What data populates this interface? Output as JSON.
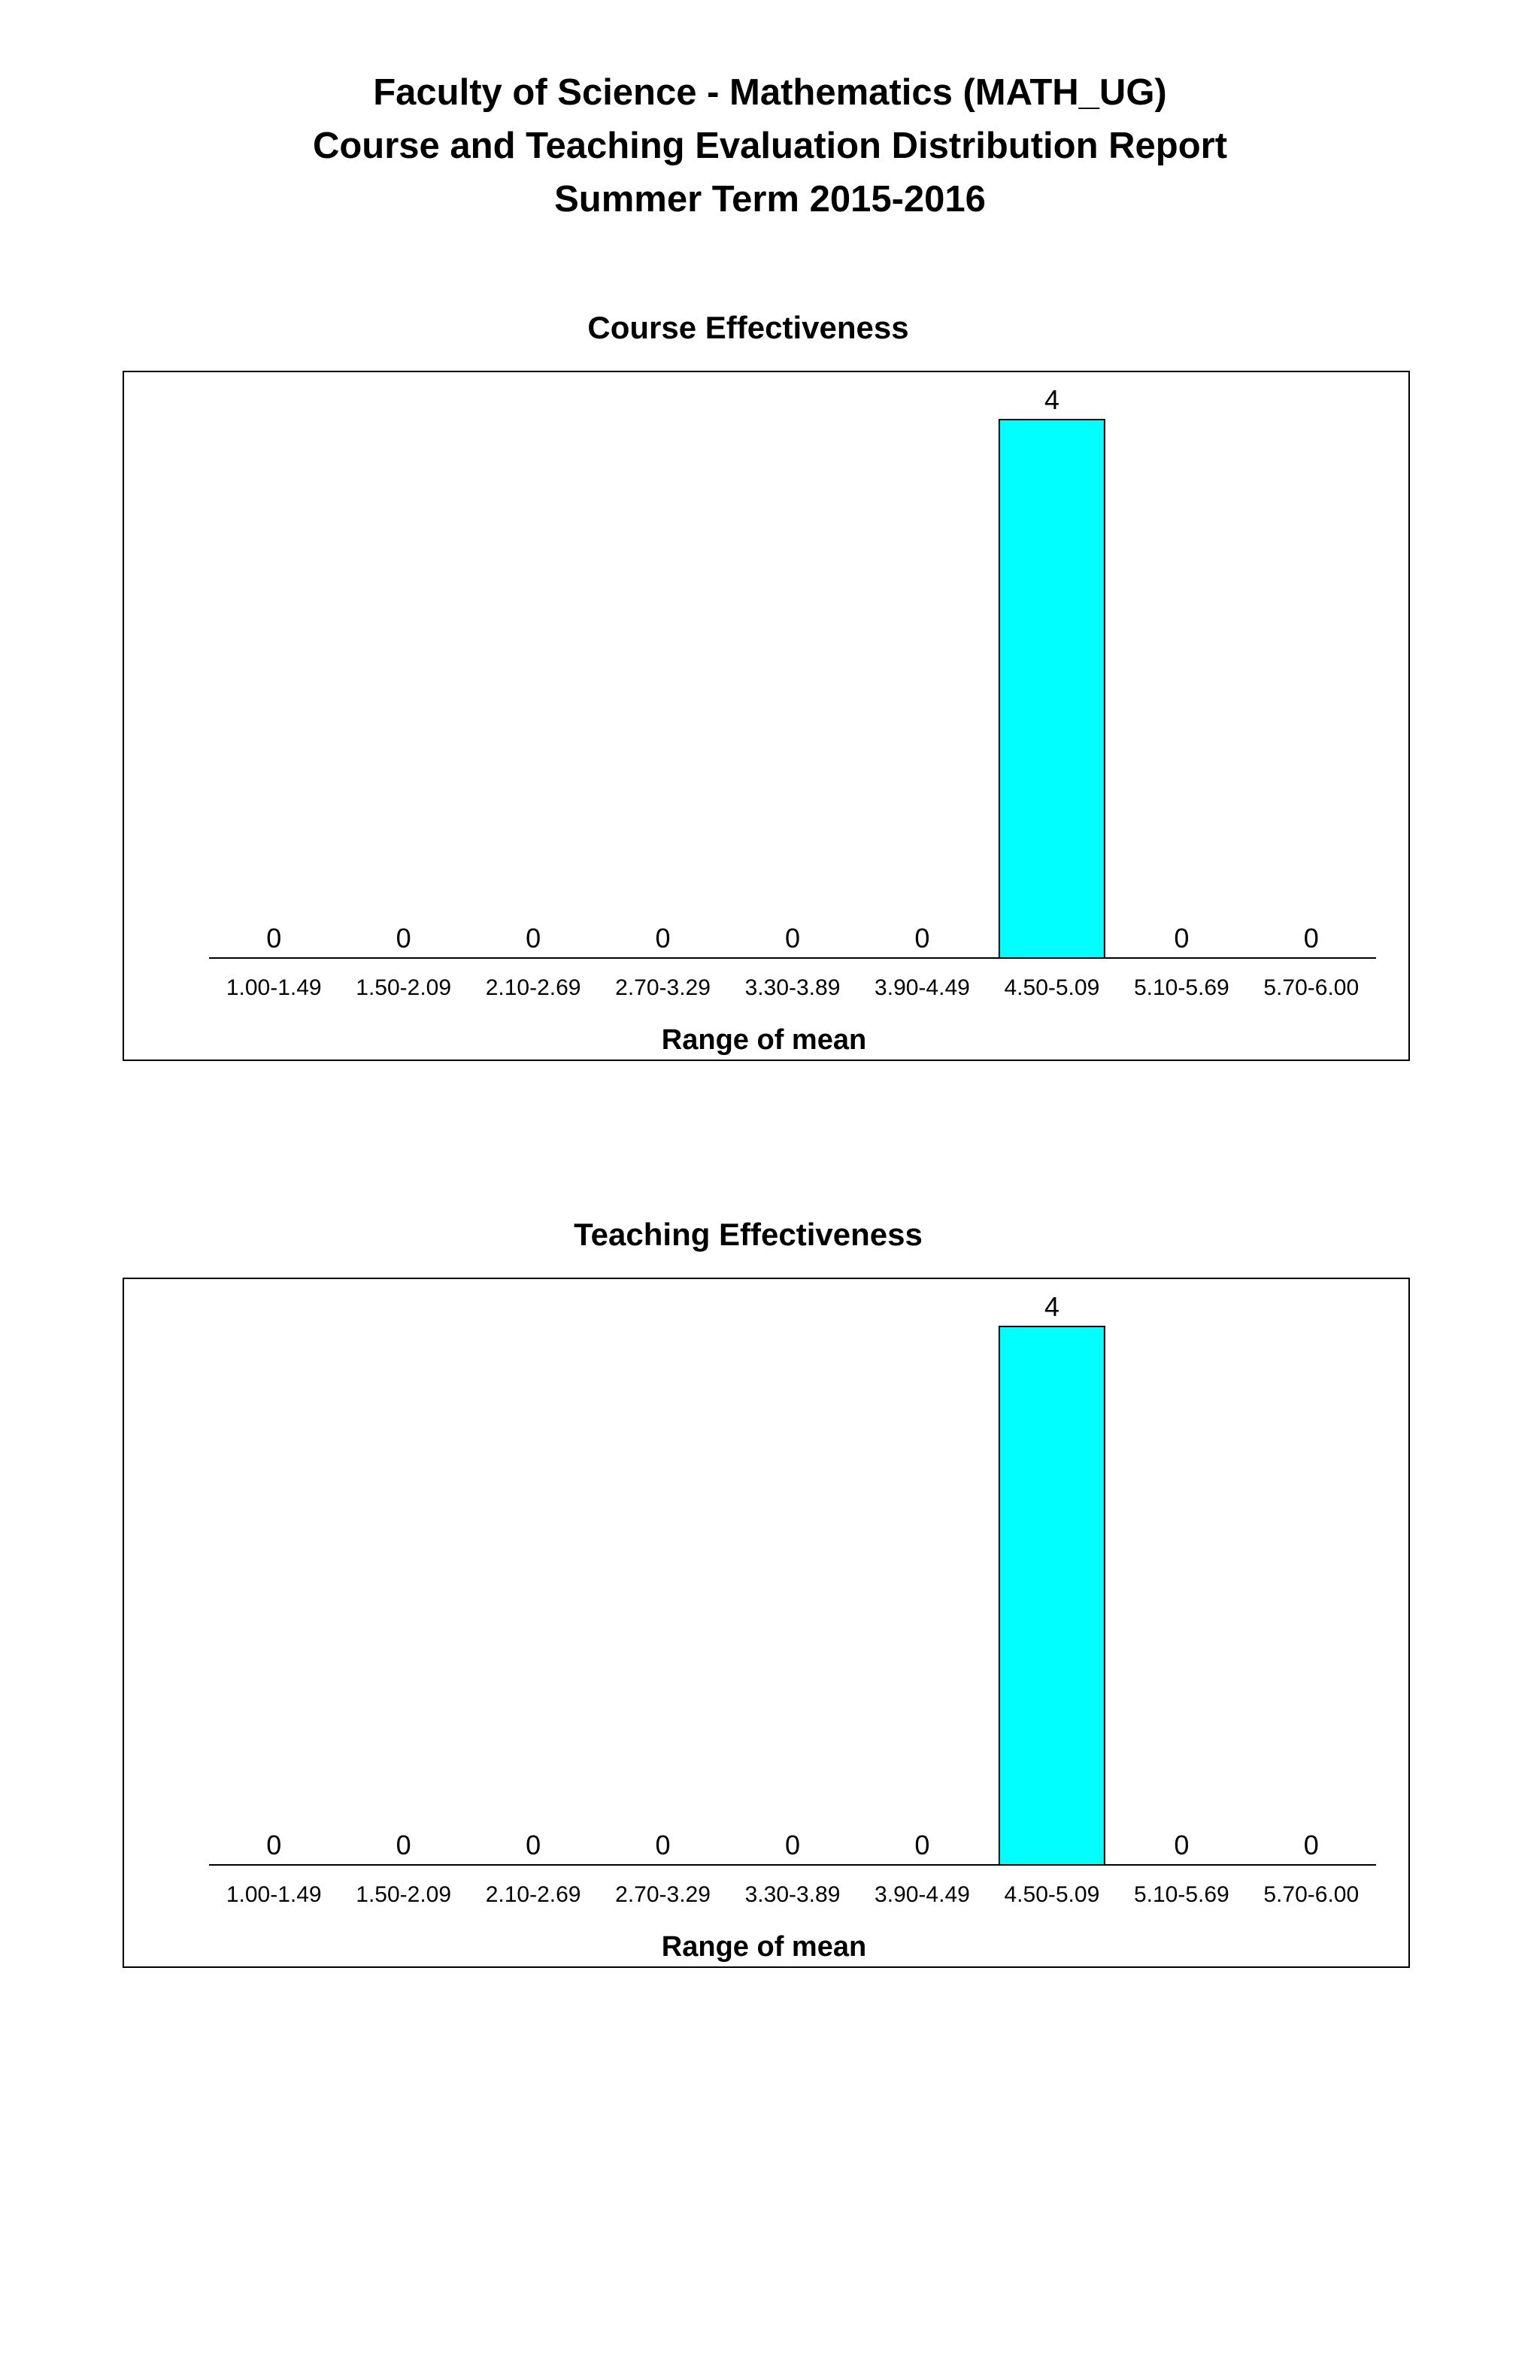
{
  "report": {
    "line1": "Faculty of Science - Mathematics (MATH_UG)",
    "line2": "Course and Teaching Evaluation Distribution Report",
    "line3": "Summer Term 2015-2016"
  },
  "colors": {
    "bar": "#00ffff",
    "stroke": "#000000"
  },
  "chart_data": [
    {
      "type": "bar",
      "title": "Course Effectiveness",
      "xlabel": "Range of mean",
      "ylabel": "",
      "ylim": [
        0,
        4
      ],
      "grid": false,
      "categories": [
        "1.00-1.49",
        "1.50-2.09",
        "2.10-2.69",
        "2.70-3.29",
        "3.30-3.89",
        "3.90-4.49",
        "4.50-5.09",
        "5.10-5.69",
        "5.70-6.00"
      ],
      "values": [
        0,
        0,
        0,
        0,
        0,
        0,
        4,
        0,
        0
      ]
    },
    {
      "type": "bar",
      "title": "Teaching Effectiveness",
      "xlabel": "Range of mean",
      "ylabel": "",
      "ylim": [
        0,
        4
      ],
      "grid": false,
      "categories": [
        "1.00-1.49",
        "1.50-2.09",
        "2.10-2.69",
        "2.70-3.29",
        "3.30-3.89",
        "3.90-4.49",
        "4.50-5.09",
        "5.10-5.69",
        "5.70-6.00"
      ],
      "values": [
        0,
        0,
        0,
        0,
        0,
        0,
        4,
        0,
        0
      ]
    }
  ]
}
